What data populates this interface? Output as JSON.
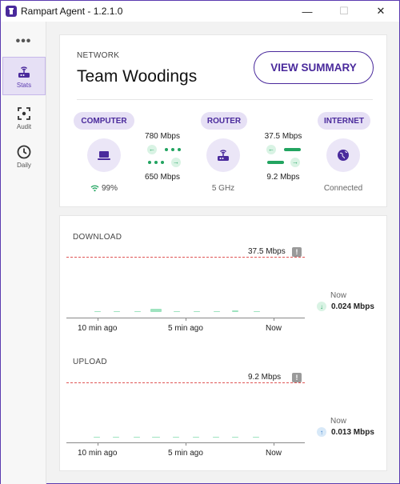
{
  "window": {
    "title": "Rampart Agent - 1.2.1.0",
    "minimize": "—",
    "maximize": "☐",
    "close": "✕"
  },
  "sidebar": {
    "more": "•••",
    "items": [
      {
        "label": "Stats",
        "icon": "router-icon",
        "active": true
      },
      {
        "label": "Audit",
        "icon": "focus-icon",
        "active": false
      },
      {
        "label": "Daily",
        "icon": "clock-icon",
        "active": false
      }
    ]
  },
  "network": {
    "section_label": "NETWORK",
    "name": "Team Woodings",
    "summary_button": "VIEW SUMMARY",
    "computer": {
      "label": "COMPUTER",
      "icon": "laptop-icon",
      "wifi_icon": "wifi-icon",
      "signal": "99%"
    },
    "router": {
      "label": "ROUTER",
      "icon": "router-icon",
      "band": "5 GHz"
    },
    "internet": {
      "label": "INTERNET",
      "icon": "globe-icon",
      "status": "Connected"
    },
    "link_computer_router": {
      "down": "780 Mbps",
      "up": "650 Mbps"
    },
    "link_router_internet": {
      "down": "37.5 Mbps",
      "up": "9.2 Mbps"
    },
    "accent": "#4a2a9c",
    "green": "#22a460"
  },
  "charts": {
    "download": {
      "title": "DOWNLOAD",
      "limit_label": "37.5 Mbps",
      "now_label": "Now",
      "now_value": "0.024 Mbps",
      "ticks": [
        "10 min ago",
        "5 min ago",
        "Now"
      ]
    },
    "upload": {
      "title": "UPLOAD",
      "limit_label": "9.2 Mbps",
      "now_label": "Now",
      "now_value": "0.013 Mbps",
      "ticks": [
        "10 min ago",
        "5 min ago",
        "Now"
      ]
    }
  },
  "chart_data": [
    {
      "type": "bar",
      "title": "DOWNLOAD",
      "xlabel": "",
      "ylabel": "",
      "x_ticks": [
        "10 min ago",
        "5 min ago",
        "Now"
      ],
      "limit_mbps": 37.5,
      "ylim": [
        0,
        37.5
      ],
      "x": [
        0.5,
        1.5,
        2.5,
        3.5,
        4.5,
        5.5,
        6.5,
        7.5,
        8.5
      ],
      "values": [
        0.2,
        0.4,
        0.1,
        2.4,
        0.3,
        0.2,
        0.2,
        0.9,
        0.2
      ]
    },
    {
      "type": "bar",
      "title": "UPLOAD",
      "xlabel": "",
      "ylabel": "",
      "x_ticks": [
        "10 min ago",
        "5 min ago",
        "Now"
      ],
      "limit_mbps": 9.2,
      "ylim": [
        0,
        9.2
      ],
      "x": [
        0.5,
        1.5,
        2.5,
        3.5,
        4.5,
        5.5,
        6.5,
        7.5,
        8.5
      ],
      "values": [
        0.05,
        0.1,
        0.05,
        0.15,
        0.07,
        0.05,
        0.05,
        0.1,
        0.04
      ]
    }
  ]
}
